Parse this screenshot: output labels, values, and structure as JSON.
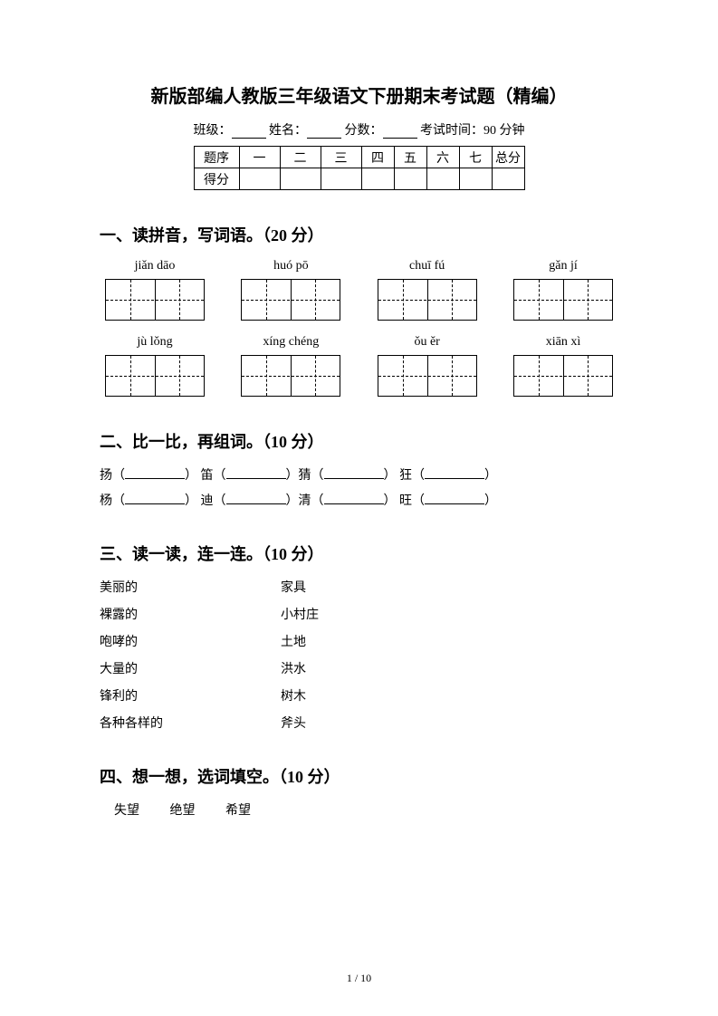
{
  "title": "新版部编人教版三年级语文下册期末考试题（精编）",
  "info": {
    "class_label": "班级：",
    "name_label": "姓名：",
    "score_label": "分数：",
    "time_label": "考试时间：90 分钟"
  },
  "score_table": {
    "row1": [
      "题序",
      "一",
      "二",
      "三",
      "四",
      "五",
      "六",
      "七",
      "总分"
    ],
    "row2_label": "得分"
  },
  "section1": {
    "heading": "一、读拼音，写词语。（20 分）",
    "pinyin_row1": [
      "jiǎn dāo",
      "huó pō",
      "chuī fú",
      "gǎn jí"
    ],
    "pinyin_row2": [
      "jù lǒng",
      "xíng chéng",
      "ǒu ěr",
      "xiān xì"
    ]
  },
  "section2": {
    "heading": "二、比一比，再组词。（10 分）",
    "line1": [
      "扬",
      "笛",
      "猜",
      "狂"
    ],
    "line2": [
      "杨",
      "迪",
      "清",
      "旺"
    ]
  },
  "section3": {
    "heading": "三、读一读，连一连。（10 分）",
    "pairs": [
      [
        "美丽的",
        "家具"
      ],
      [
        "裸露的",
        "小村庄"
      ],
      [
        "咆哮的",
        "土地"
      ],
      [
        "大量的",
        "洪水"
      ],
      [
        "锋利的",
        "树木"
      ],
      [
        "各种各样的",
        "斧头"
      ]
    ]
  },
  "section4": {
    "heading": "四、想一想，选词填空。（10 分）",
    "words": [
      "失望",
      "绝望",
      "希望"
    ]
  },
  "page_number": "1 / 10"
}
